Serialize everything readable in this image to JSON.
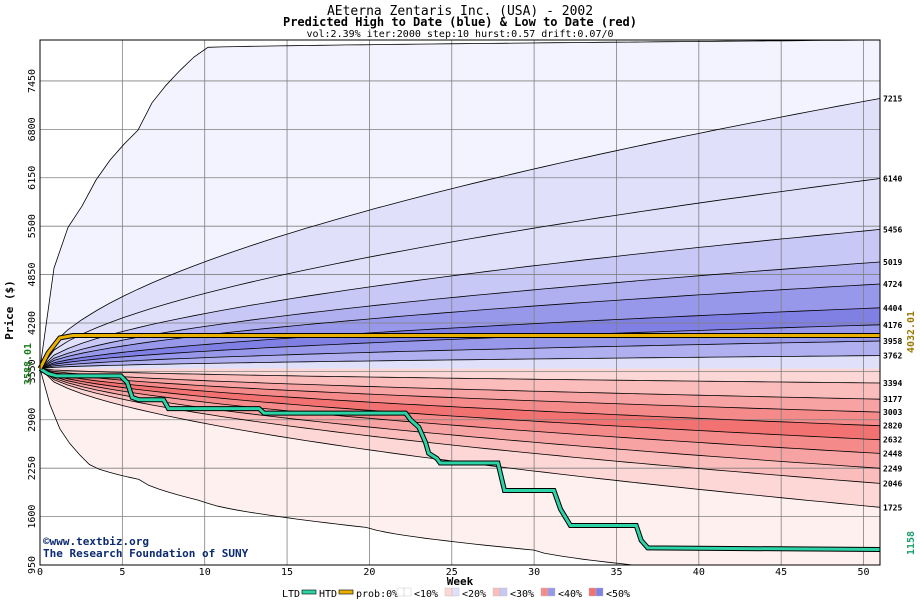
{
  "header": {
    "title": "AEterna Zentaris Inc. (USA) - 2002",
    "subtitle": "Predicted High to Date (blue) &  Low to Date (red)",
    "params": "vol:2.39% iter:2000 step:10 hurst:0.57 drift:0.07/0"
  },
  "credits": {
    "line1": "©www.textbiz.org",
    "line2": "The Research Foundation of SUNY"
  },
  "side_labels": {
    "start_price": "3588.01",
    "htd_price": "4032.01",
    "ltd_price": "1158"
  },
  "legend": {
    "ltd": "LTD",
    "htd": "HTD",
    "prob": "prob:0%",
    "bins": [
      "<10%",
      "<20%",
      "<30%",
      "<40%",
      "<50%"
    ]
  },
  "colors": {
    "ltd_line": "#2bd3a6",
    "htd_line": "#e8b000",
    "blue_bands": [
      "#f3f3ff",
      "#e0e0fb",
      "#c8c8f6",
      "#b0b0f0",
      "#9898ea",
      "#8080e4"
    ],
    "red_bands": [
      "#fff0f0",
      "#fdd6d6",
      "#fbbcbc",
      "#f8a3a3",
      "#f58a8a",
      "#f27272"
    ],
    "start_label": "#1a7a1a",
    "htd_label": "#9a7a00",
    "ltd_label": "#1aa06a"
  },
  "chart_data": {
    "type": "area",
    "xlabel": "Week",
    "ylabel": "Price ($)",
    "xlim": [
      0,
      51
    ],
    "ylim": [
      950,
      8000
    ],
    "x_ticks": [
      0,
      5,
      10,
      15,
      20,
      25,
      30,
      35,
      40,
      45,
      50
    ],
    "y_ticks": [
      950,
      1600,
      2250,
      2900,
      3550,
      4200,
      4850,
      5500,
      6150,
      6800,
      7450
    ],
    "grid": true,
    "start_price": 3588.01,
    "high_levels_right": [
      "7215",
      "6140",
      "5456",
      "5019",
      "4724",
      "4404",
      "4176",
      "3958",
      "3762"
    ],
    "low_levels_right": [
      "3394",
      "3177",
      "3003",
      "2820",
      "2632",
      "2448",
      "2249",
      "2046",
      "1725"
    ],
    "high_band_end_values": [
      7215,
      6140,
      5456,
      5019,
      4724,
      4404,
      4176,
      3958,
      3762
    ],
    "low_band_end_values": [
      3394,
      3177,
      3003,
      2820,
      2632,
      2448,
      2249,
      2046,
      1725
    ],
    "high_envelope": {
      "x": [
        0,
        1,
        3,
        6,
        10,
        51
      ],
      "y": [
        3588,
        5100,
        5900,
        6800,
        7900,
        8000
      ]
    },
    "low_envelope": {
      "x": [
        0,
        1,
        3,
        6,
        10,
        20,
        30,
        36
      ],
      "y": [
        3588,
        2900,
        2300,
        2100,
        1800,
        1450,
        1150,
        950
      ]
    },
    "htd_series": {
      "name": "HTD",
      "x": [
        0,
        0.5,
        1.2,
        2,
        51
      ],
      "y": [
        3588,
        3800,
        4000,
        4032,
        4032
      ]
    },
    "ltd_series": {
      "name": "LTD",
      "x": [
        0,
        0.5,
        1,
        4.9,
        5.3,
        5.6,
        6,
        7.5,
        7.8,
        13.3,
        13.6,
        22.2,
        22.5,
        23,
        23.4,
        23.6,
        24.1,
        24.3,
        27.8,
        28.2,
        31.2,
        31.6,
        32.2,
        36.2,
        36.5,
        36.9,
        51
      ],
      "y": [
        3588,
        3520,
        3490,
        3490,
        3400,
        3200,
        3170,
        3170,
        3050,
        3050,
        2990,
        2990,
        2900,
        2800,
        2600,
        2450,
        2380,
        2320,
        2320,
        1950,
        1950,
        1700,
        1480,
        1480,
        1280,
        1180,
        1158
      ]
    }
  }
}
